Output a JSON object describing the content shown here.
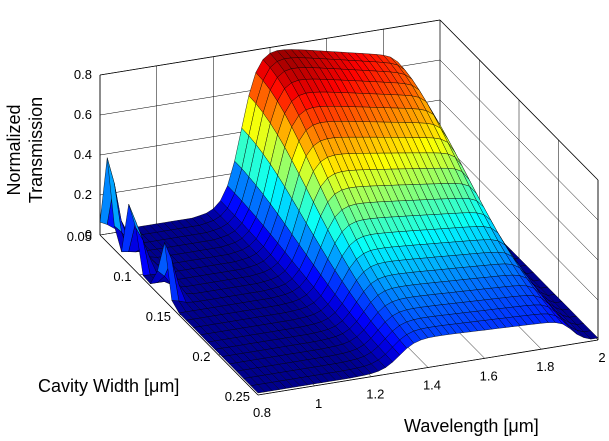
{
  "chart_data": {
    "type": "surface",
    "title": "",
    "xlabel": "Wavelength [μm]",
    "ylabel": "Cavity Width [μm]",
    "zlabel": [
      "Normalized",
      "Transmission"
    ],
    "xlim": [
      0.8,
      2.0
    ],
    "ylim": [
      0.05,
      0.25
    ],
    "zlim": [
      0,
      0.8
    ],
    "x_ticks": [
      "0.8",
      "1",
      "1.2",
      "1.4",
      "1.6",
      "1.8",
      "2"
    ],
    "y_ticks": [
      "0.05",
      "0.1",
      "0.15",
      "0.2",
      "0.25"
    ],
    "z_ticks": [
      "0",
      "0.2",
      "0.4",
      "0.6",
      "0.8"
    ],
    "grid": true,
    "colormap": "jet",
    "features": {
      "main_resonance": {
        "description_wavelength_start": 1.3,
        "wavelength_end": 1.95,
        "peak_value": 0.82,
        "ridge_shift_per_width": 0.0
      },
      "secondary_peaks": [
        {
          "wavelength": 0.8,
          "cavity_width": 0.06,
          "value": 0.42
        },
        {
          "wavelength": 0.8,
          "cavity_width": 0.09,
          "value": 0.38
        },
        {
          "wavelength": 0.8,
          "cavity_width": 0.13,
          "value": 0.3
        }
      ]
    }
  }
}
